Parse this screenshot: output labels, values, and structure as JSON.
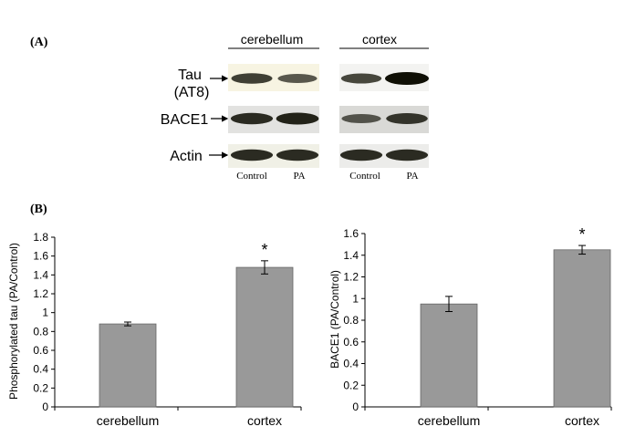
{
  "panel_a": {
    "label": "(A)",
    "regions": [
      "cerebellum",
      "cortex"
    ],
    "rows": [
      {
        "label_lines": [
          "Tau",
          "(AT8)"
        ],
        "cerebellum": [
          0.75,
          0.6
        ],
        "cortex": [
          0.7,
          1.0
        ]
      },
      {
        "label_lines": [
          "BACE1"
        ],
        "cerebellum": [
          0.85,
          0.9
        ],
        "cortex": [
          0.6,
          0.8
        ]
      },
      {
        "label_lines": [
          "Actin"
        ],
        "cerebellum": [
          0.85,
          0.85
        ],
        "cortex": [
          0.85,
          0.85
        ]
      }
    ],
    "lanes": [
      "Control",
      "PA"
    ]
  },
  "panel_b": {
    "label": "(B)"
  },
  "chart_data": [
    {
      "type": "bar",
      "categories": [
        "cerebellum",
        "cortex"
      ],
      "values": [
        0.88,
        1.48
      ],
      "errors": [
        0.02,
        0.07
      ],
      "significance": [
        "",
        "*"
      ],
      "ylabel": "Phosphorylated tau (PA/Control)",
      "ylim": [
        0,
        1.8
      ],
      "yticks": [
        "0",
        "0.2",
        "0.4",
        "0.6",
        "0.8",
        "1",
        "1.2",
        "1.4",
        "1.6",
        "1.8"
      ],
      "bar_color": "#999999",
      "grid": false
    },
    {
      "type": "bar",
      "categories": [
        "cerebellum",
        "cortex"
      ],
      "values": [
        0.95,
        1.45
      ],
      "errors": [
        0.07,
        0.04
      ],
      "significance": [
        "",
        "*"
      ],
      "ylabel": "BACE1 (PA/Control)",
      "ylim": [
        0,
        1.6
      ],
      "yticks": [
        "0",
        "0.2",
        "0.4",
        "0.6",
        "0.8",
        "1",
        "1.2",
        "1.4",
        "1.6"
      ],
      "bar_color": "#999999",
      "grid": false
    }
  ]
}
